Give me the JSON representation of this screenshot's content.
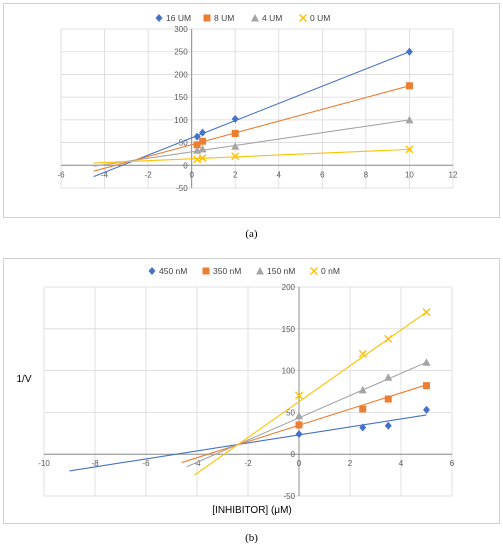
{
  "captions": {
    "a": "(a)",
    "b": "(b)"
  },
  "chart_data": [
    {
      "type": "scatter",
      "title": "",
      "xlabel": "",
      "ylabel": "",
      "xlim": [
        -6,
        12
      ],
      "ylim": [
        -50,
        300
      ],
      "xticks": [
        -6,
        -4,
        -2,
        0,
        2,
        4,
        6,
        8,
        10,
        12
      ],
      "yticks": [
        -50,
        0,
        50,
        100,
        150,
        200,
        250,
        300
      ],
      "grid": true,
      "legend": "top",
      "series": [
        {
          "name": "16 UM",
          "color": "#4472C4",
          "marker": "diamond",
          "x": [
            0.25,
            0.5,
            2,
            10
          ],
          "y": [
            63,
            72,
            102,
            250
          ],
          "fit": {
            "x": [
              -4.5,
              10
            ],
            "y": [
              -25,
              250
            ]
          }
        },
        {
          "name": "8 UM",
          "color": "#ED7D31",
          "marker": "square",
          "x": [
            0.25,
            0.5,
            2,
            10
          ],
          "y": [
            45,
            53,
            70,
            175
          ],
          "fit": {
            "x": [
              -4.5,
              10
            ],
            "y": [
              -13,
              175
            ]
          }
        },
        {
          "name": "4 UM",
          "color": "#A5A5A5",
          "marker": "triangle",
          "x": [
            0.25,
            0.5,
            2,
            10
          ],
          "y": [
            33,
            36,
            42,
            100
          ],
          "fit": {
            "x": [
              -4.5,
              10
            ],
            "y": [
              -2,
              100
            ]
          }
        },
        {
          "name": "0 UM",
          "color": "#FFC000",
          "marker": "x",
          "x": [
            0.25,
            0.5,
            2,
            10
          ],
          "y": [
            13,
            16,
            20,
            35
          ],
          "fit": {
            "x": [
              -4.5,
              10
            ],
            "y": [
              5,
              35
            ]
          }
        }
      ]
    },
    {
      "type": "scatter",
      "title": "",
      "xlabel": "[INHIBITOR] (μM)",
      "ylabel": "1/V",
      "xlim": [
        -10,
        6
      ],
      "ylim": [
        -50,
        200
      ],
      "xticks": [
        -10,
        -8,
        -6,
        -4,
        -2,
        0,
        2,
        4,
        6
      ],
      "yticks": [
        -50,
        0,
        50,
        100,
        150,
        200
      ],
      "grid": true,
      "legend": "top",
      "series": [
        {
          "name": "450 nM",
          "color": "#4472C4",
          "marker": "diamond",
          "x": [
            0,
            2.5,
            3.5,
            5
          ],
          "y": [
            24,
            32,
            34,
            53
          ],
          "fit": {
            "x": [
              -9,
              5
            ],
            "y": [
              -20,
              47
            ]
          }
        },
        {
          "name": "350 nM",
          "color": "#ED7D31",
          "marker": "square",
          "x": [
            0,
            2.5,
            3.5,
            5
          ],
          "y": [
            35,
            54,
            66,
            82
          ],
          "fit": {
            "x": [
              -4.6,
              5
            ],
            "y": [
              -10,
              83
            ]
          }
        },
        {
          "name": "150 nM",
          "color": "#A5A5A5",
          "marker": "triangle",
          "x": [
            0,
            2.5,
            3.5,
            5
          ],
          "y": [
            46,
            77,
            92,
            110
          ],
          "fit": {
            "x": [
              -4.4,
              5
            ],
            "y": [
              -15,
              110
            ]
          }
        },
        {
          "name": "0 nM",
          "color": "#FFC000",
          "marker": "x",
          "x": [
            0,
            2.5,
            3.5,
            5
          ],
          "y": [
            70,
            120,
            138,
            170
          ],
          "fit": {
            "x": [
              -4.1,
              5
            ],
            "y": [
              -25,
              170
            ]
          }
        }
      ]
    }
  ]
}
